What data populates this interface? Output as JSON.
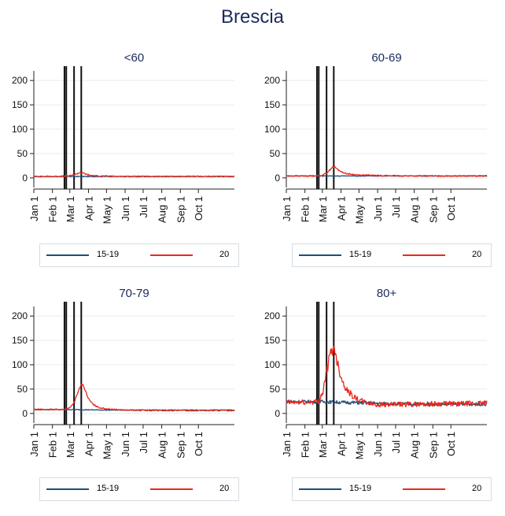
{
  "page_title": "Brescia",
  "colors": {
    "series_1519": "#1f4e79",
    "series_20": "#e8291c",
    "title": "#1a2a5e",
    "grid": "#e4ecef"
  },
  "legend": {
    "series_1519": "15-19",
    "series_20": "20"
  },
  "x_ticks": [
    "Jan 1",
    "Feb 1",
    "Mar 1",
    "Apr 1",
    "May 1",
    "Jun 1",
    "Jul 1",
    "Aug 1",
    "Sep 1",
    "Oct 1"
  ],
  "y_ticks": [
    "0",
    "50",
    "100",
    "150",
    "200"
  ],
  "chart_data": [
    {
      "type": "line",
      "title": "<60",
      "ylim": [
        -10,
        210
      ],
      "x_unit": "day of year",
      "x_ticks_days": [
        1,
        32,
        61,
        92,
        122,
        153,
        183,
        214,
        245,
        275
      ],
      "vertical_lines_days": [
        52,
        55,
        68,
        80
      ],
      "grid": true,
      "legend_position": "bottom",
      "series": [
        {
          "name": "15-19",
          "x": [
            1,
            60,
            120,
            180,
            240,
            300,
            335
          ],
          "y": [
            3,
            3,
            3,
            3,
            3,
            3,
            3
          ]
        },
        {
          "name": "20",
          "x": [
            1,
            40,
            55,
            65,
            72,
            78,
            85,
            95,
            110,
            150,
            200,
            250,
            300,
            335
          ],
          "y": [
            3,
            3,
            4,
            5,
            8,
            11,
            9,
            5,
            4,
            3,
            3,
            3,
            3,
            3
          ]
        }
      ]
    },
    {
      "type": "line",
      "title": "60-69",
      "ylim": [
        -10,
        210
      ],
      "x_unit": "day of year",
      "x_ticks_days": [
        1,
        32,
        61,
        92,
        122,
        153,
        183,
        214,
        245,
        275
      ],
      "vertical_lines_days": [
        52,
        55,
        68,
        80
      ],
      "grid": true,
      "legend_position": "bottom",
      "series": [
        {
          "name": "15-19",
          "x": [
            1,
            60,
            120,
            180,
            240,
            300,
            335
          ],
          "y": [
            4,
            4,
            4,
            4,
            4,
            4,
            4
          ]
        },
        {
          "name": "20",
          "x": [
            1,
            40,
            60,
            68,
            74,
            78,
            82,
            88,
            95,
            105,
            120,
            150,
            200,
            250,
            300,
            335
          ],
          "y": [
            4,
            4,
            5,
            10,
            17,
            23,
            22,
            16,
            11,
            8,
            6,
            5,
            4,
            4,
            4,
            4
          ]
        }
      ]
    },
    {
      "type": "line",
      "title": "70-79",
      "ylim": [
        -10,
        210
      ],
      "x_unit": "day of year",
      "x_ticks_days": [
        1,
        32,
        61,
        92,
        122,
        153,
        183,
        214,
        245,
        275
      ],
      "vertical_lines_days": [
        52,
        55,
        68,
        80
      ],
      "grid": true,
      "legend_position": "bottom",
      "series": [
        {
          "name": "15-19",
          "x": [
            1,
            60,
            120,
            180,
            240,
            300,
            335
          ],
          "y": [
            8,
            8,
            7,
            7,
            7,
            7,
            7
          ]
        },
        {
          "name": "20",
          "x": [
            1,
            50,
            60,
            68,
            73,
            78,
            82,
            86,
            92,
            100,
            110,
            125,
            150,
            200,
            250,
            300,
            335
          ],
          "y": [
            8,
            8,
            11,
            22,
            38,
            55,
            60,
            50,
            30,
            18,
            12,
            9,
            7,
            6,
            6,
            6,
            6
          ]
        }
      ]
    },
    {
      "type": "line",
      "title": "80+",
      "ylim": [
        -10,
        210
      ],
      "x_unit": "day of year",
      "x_ticks_days": [
        1,
        32,
        61,
        92,
        122,
        153,
        183,
        214,
        245,
        275
      ],
      "vertical_lines_days": [
        52,
        55,
        68,
        80
      ],
      "grid": true,
      "legend_position": "bottom",
      "series": [
        {
          "name": "15-19",
          "x": [
            1,
            30,
            60,
            90,
            120,
            150,
            180,
            240,
            300,
            335
          ],
          "y": [
            25,
            24,
            24,
            23,
            22,
            21,
            20,
            19,
            19,
            19
          ]
        },
        {
          "name": "20",
          "x": [
            1,
            30,
            55,
            62,
            68,
            74,
            78,
            82,
            86,
            90,
            95,
            102,
            110,
            120,
            135,
            150,
            180,
            220,
            260,
            300,
            335
          ],
          "y": [
            22,
            23,
            25,
            45,
            85,
            120,
            132,
            130,
            105,
            85,
            65,
            48,
            38,
            28,
            22,
            18,
            18,
            19,
            20,
            20,
            21
          ]
        }
      ]
    }
  ]
}
